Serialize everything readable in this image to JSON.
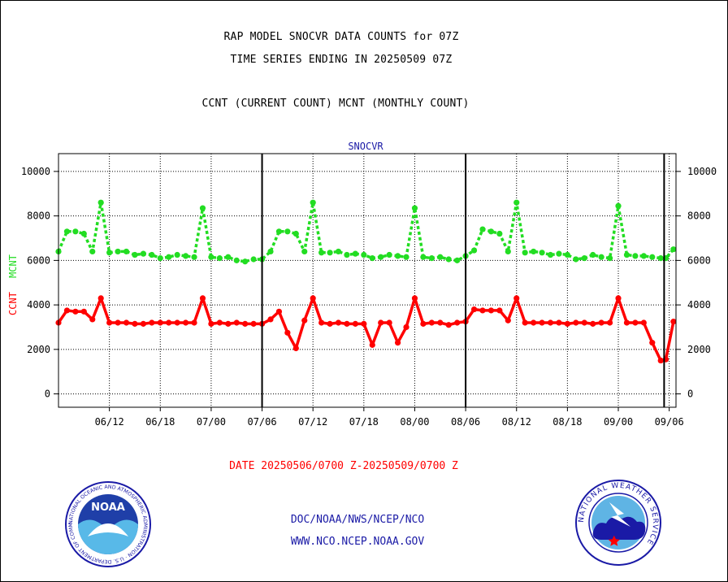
{
  "header": {
    "line1": "RAP MODEL SNOCVR DATA COUNTS for 07Z",
    "line2": "TIME SERIES ENDING IN 20250509 07Z",
    "line3": "CCNT (CURRENT COUNT) MCNT (MONTHLY COUNT)"
  },
  "footer": {
    "date_range": "DATE 20250506/0700 Z-20250509/0700 Z",
    "link1": "DOC/NOAA/NWS/NCEP/NCO",
    "link2": "WWW.NCO.NCEP.NOAA.GOV"
  },
  "logos": {
    "noaa_text": "NOAA",
    "noaa_ring": "NATIONAL OCEANIC AND ATMOSPHERIC ADMINISTRATION · U.S. DEPARTMENT OF COMMERCE",
    "nws_ring": "NATIONAL WEATHER SERVICE"
  },
  "colors": {
    "ccnt": "#ff0000",
    "mcnt": "#22dd22",
    "panel_title": "#1a1aa6",
    "grid": "#000000"
  },
  "chart_data": {
    "type": "line",
    "title": "SNOCVR",
    "ylabel_left": [
      "CCNT",
      "MCNT"
    ],
    "ylim": [
      -600,
      10800
    ],
    "yticks": [
      0,
      2000,
      4000,
      6000,
      8000,
      10000
    ],
    "xticks": [
      "06/12",
      "06/18",
      "07/00",
      "07/06",
      "07/12",
      "07/18",
      "08/00",
      "08/06",
      "08/12",
      "08/18",
      "09/00",
      "09/06"
    ],
    "xtick_positions": [
      6,
      12,
      18,
      24,
      30,
      36,
      42,
      48,
      54,
      60,
      66,
      72
    ],
    "xlim": [
      0,
      72.8
    ],
    "day_boundaries": [
      24,
      48,
      71.4
    ],
    "grid": true,
    "series": [
      {
        "name": "MCNT",
        "color": "#22dd22",
        "style": "dotted",
        "x": [
          0,
          1,
          2,
          3,
          4,
          5,
          6,
          7,
          8,
          9,
          10,
          11,
          12,
          13,
          14,
          15,
          16,
          17,
          18,
          19,
          20,
          21,
          22,
          23,
          24,
          25,
          26,
          27,
          28,
          29,
          30,
          31,
          32,
          33,
          34,
          35,
          36,
          37,
          38,
          39,
          40,
          41,
          42,
          43,
          44,
          45,
          46,
          47,
          48,
          49,
          50,
          51,
          52,
          53,
          54,
          55,
          56,
          57,
          58,
          59,
          60,
          61,
          62,
          63,
          64,
          65,
          66,
          67,
          68,
          69,
          70,
          71,
          71.6,
          72.5
        ],
        "values": [
          6400,
          7300,
          7300,
          7200,
          6400,
          8600,
          6350,
          6400,
          6400,
          6250,
          6300,
          6250,
          6100,
          6150,
          6250,
          6200,
          6150,
          8350,
          6150,
          6100,
          6150,
          6000,
          5950,
          6050,
          6050,
          6400,
          7300,
          7300,
          7200,
          6400,
          8600,
          6350,
          6350,
          6400,
          6250,
          6300,
          6250,
          6100,
          6150,
          6250,
          6200,
          6150,
          8350,
          6150,
          6100,
          6150,
          6050,
          6000,
          6200,
          6450,
          7400,
          7300,
          7200,
          6400,
          8600,
          6350,
          6400,
          6350,
          6250,
          6300,
          6250,
          6050,
          6100,
          6250,
          6150,
          6100,
          8450,
          6250,
          6200,
          6200,
          6150,
          6100,
          6100,
          6500
        ]
      },
      {
        "name": "CCNT",
        "color": "#ff0000",
        "style": "solid",
        "x": [
          0,
          1,
          2,
          3,
          4,
          5,
          6,
          7,
          8,
          9,
          10,
          11,
          12,
          13,
          14,
          15,
          16,
          17,
          18,
          19,
          20,
          21,
          22,
          23,
          24,
          25,
          26,
          27,
          28,
          29,
          30,
          31,
          32,
          33,
          34,
          35,
          36,
          37,
          38,
          39,
          40,
          41,
          42,
          43,
          44,
          45,
          46,
          47,
          48,
          49,
          50,
          51,
          52,
          53,
          54,
          55,
          56,
          57,
          58,
          59,
          60,
          61,
          62,
          63,
          64,
          65,
          66,
          67,
          68,
          69,
          70,
          71,
          71.6,
          72.5
        ],
        "values": [
          3200,
          3750,
          3700,
          3700,
          3350,
          4300,
          3200,
          3200,
          3200,
          3150,
          3150,
          3200,
          3200,
          3200,
          3200,
          3200,
          3200,
          4300,
          3150,
          3200,
          3150,
          3200,
          3150,
          3150,
          3150,
          3350,
          3700,
          2750,
          2050,
          3300,
          4300,
          3200,
          3150,
          3200,
          3150,
          3150,
          3150,
          2200,
          3200,
          3200,
          2300,
          3000,
          4300,
          3150,
          3200,
          3200,
          3100,
          3200,
          3250,
          3800,
          3750,
          3750,
          3750,
          3300,
          4300,
          3200,
          3200,
          3200,
          3200,
          3200,
          3150,
          3200,
          3200,
          3150,
          3200,
          3200,
          4300,
          3200,
          3200,
          3200,
          2300,
          1500,
          1550,
          3250
        ]
      }
    ]
  }
}
